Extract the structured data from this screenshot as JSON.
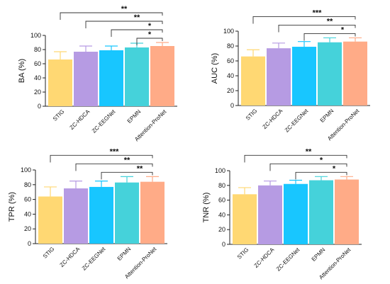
{
  "categories": [
    "STIG",
    "ZC-HDCA",
    "ZC-EEGNet",
    "EPMN",
    "Attention-ProNet"
  ],
  "colors": [
    "#FFD873",
    "#B69BE3",
    "#18C6FF",
    "#45D2DA",
    "#FFAB87"
  ],
  "chart_data": [
    {
      "type": "bar",
      "ylabel": "BA (%)",
      "ylim": [
        0,
        100
      ],
      "yticks": [
        0,
        20,
        40,
        60,
        80,
        100
      ],
      "categories": [
        "STIG",
        "ZC-HDCA",
        "ZC-EEGNet",
        "EPMN",
        "Attention-ProNet"
      ],
      "values": [
        66,
        77,
        79,
        83,
        85
      ],
      "errors": [
        11,
        8,
        6,
        6,
        5
      ],
      "significance": [
        {
          "from": "STIG",
          "to": "Attention-ProNet",
          "label": "**"
        },
        {
          "from": "ZC-HDCA",
          "to": "Attention-ProNet",
          "label": "**"
        },
        {
          "from": "ZC-EEGNet",
          "to": "Attention-ProNet",
          "label": "*"
        },
        {
          "from": "EPMN",
          "to": "Attention-ProNet",
          "label": "*"
        }
      ]
    },
    {
      "type": "bar",
      "ylabel": "AUC (%)",
      "ylim": [
        0,
        100
      ],
      "yticks": [
        0,
        20,
        40,
        60,
        80,
        100
      ],
      "categories": [
        "STIG",
        "ZC-HDCA",
        "ZC-EEGNet",
        "EPMN",
        "Attention-ProNet"
      ],
      "values": [
        66,
        77,
        79,
        85,
        86
      ],
      "errors": [
        9,
        7,
        7,
        6,
        5
      ],
      "significance": [
        {
          "from": "STIG",
          "to": "Attention-ProNet",
          "label": "***"
        },
        {
          "from": "ZC-HDCA",
          "to": "Attention-ProNet",
          "label": "**"
        },
        {
          "from": "ZC-EEGNet",
          "to": "Attention-ProNet",
          "label": "*"
        }
      ]
    },
    {
      "type": "bar",
      "ylabel": "TPR (%)",
      "ylim": [
        0,
        100
      ],
      "yticks": [
        0,
        20,
        40,
        60,
        80,
        100
      ],
      "categories": [
        "STIG",
        "ZC-HDCA",
        "ZC-EEGNet",
        "EPMN",
        "Attention-ProNet"
      ],
      "values": [
        64,
        75,
        77,
        83,
        84
      ],
      "errors": [
        13,
        10,
        8,
        8,
        7
      ],
      "significance": [
        {
          "from": "STIG",
          "to": "Attention-ProNet",
          "label": "***"
        },
        {
          "from": "ZC-HDCA",
          "to": "Attention-ProNet",
          "label": "**"
        },
        {
          "from": "ZC-EEGNet",
          "to": "Attention-ProNet",
          "label": "**"
        }
      ]
    },
    {
      "type": "bar",
      "ylabel": "TNR (%)",
      "ylim": [
        0,
        100
      ],
      "yticks": [
        0,
        20,
        40,
        60,
        80,
        100
      ],
      "categories": [
        "STIG",
        "ZC-HDCA",
        "ZC-EEGNet",
        "EPMN",
        "Attention-ProNet"
      ],
      "values": [
        68,
        80,
        82,
        87,
        88
      ],
      "errors": [
        9,
        6,
        5,
        5,
        4
      ],
      "significance": [
        {
          "from": "STIG",
          "to": "Attention-ProNet",
          "label": "**"
        },
        {
          "from": "ZC-HDCA",
          "to": "Attention-ProNet",
          "label": "*"
        },
        {
          "from": "ZC-EEGNet",
          "to": "Attention-ProNet",
          "label": "*"
        }
      ]
    }
  ]
}
